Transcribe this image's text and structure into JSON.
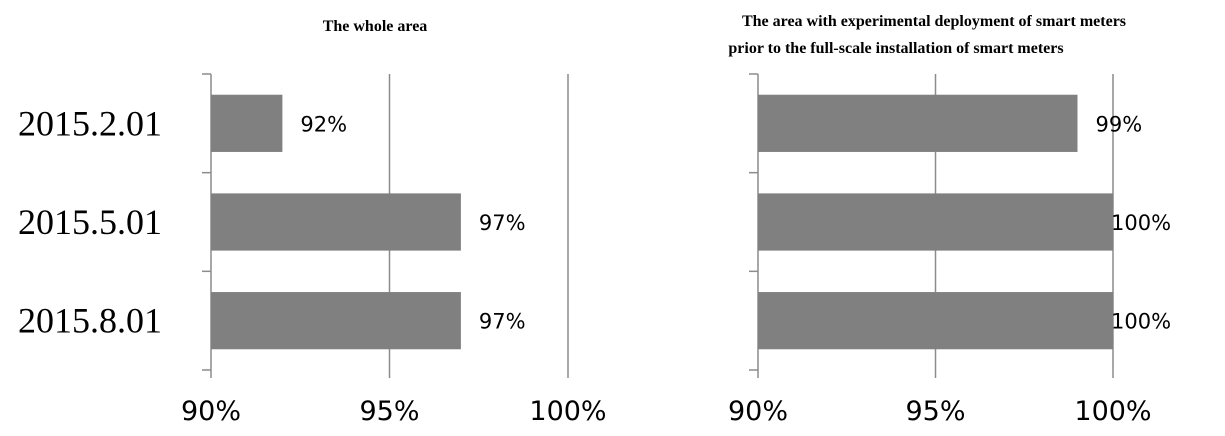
{
  "chart_data": [
    {
      "type": "bar",
      "orientation": "horizontal",
      "title": "The whole area",
      "subtitle": "",
      "categories": [
        "2015.2.01",
        "2015.5.01",
        "2015.8.01"
      ],
      "values": [
        92,
        97,
        97
      ],
      "data_labels": [
        "92%",
        "97%",
        "97%"
      ],
      "xlim": [
        90,
        100
      ],
      "xticks": [
        90,
        95,
        100
      ],
      "xtick_labels": [
        "90%",
        "95%",
        "100%"
      ],
      "xlabel": "",
      "ylabel": "",
      "grid": true,
      "bar_color": "#808080"
    },
    {
      "type": "bar",
      "orientation": "horizontal",
      "title": "The area with experimental deployment of smart meters",
      "subtitle": "prior to the full-scale installation of smart meters",
      "categories": [
        "2015.2.01",
        "2015.5.01",
        "2015.8.01"
      ],
      "values": [
        99,
        100,
        100
      ],
      "data_labels": [
        "99%",
        "100%",
        "100%"
      ],
      "xlim": [
        90,
        100
      ],
      "xticks": [
        90,
        95,
        100
      ],
      "xtick_labels": [
        "90%",
        "95%",
        "100%"
      ],
      "xlabel": "",
      "ylabel": "",
      "grid": true,
      "bar_color": "#808080"
    }
  ]
}
